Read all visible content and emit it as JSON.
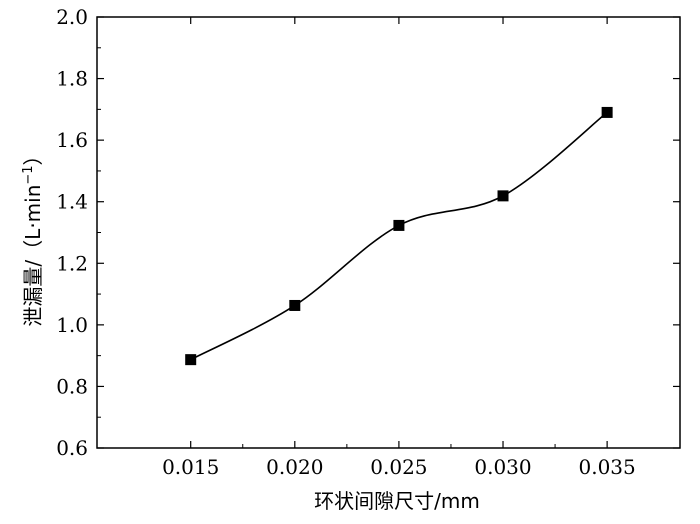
{
  "chart_data": {
    "type": "line",
    "xlabel": "环状间隙尺寸/mm",
    "ylabel_prefix": "泄漏量/（L·min",
    "ylabel_sup": "−1",
    "ylabel_suffix": "）",
    "xlim": [
      0.0105,
      0.0385
    ],
    "ylim": [
      0.6,
      2.0
    ],
    "x_ticks": [
      "0.015",
      "0.020",
      "0.025",
      "0.030",
      "0.035"
    ],
    "x_tick_values": [
      0.015,
      0.02,
      0.025,
      0.03,
      0.035
    ],
    "y_ticks": [
      "0.6",
      "0.8",
      "1.0",
      "1.2",
      "1.4",
      "1.6",
      "1.8",
      "2.0"
    ],
    "y_tick_values": [
      0.6,
      0.8,
      1.0,
      1.2,
      1.4,
      1.6,
      1.8,
      2.0
    ],
    "series": [
      {
        "x": [
          0.015,
          0.02,
          0.025,
          0.03,
          0.035
        ],
        "y": [
          0.887,
          1.063,
          1.323,
          1.419,
          1.69
        ],
        "marker": "square",
        "color": "#000000"
      }
    ],
    "grid": false
  }
}
